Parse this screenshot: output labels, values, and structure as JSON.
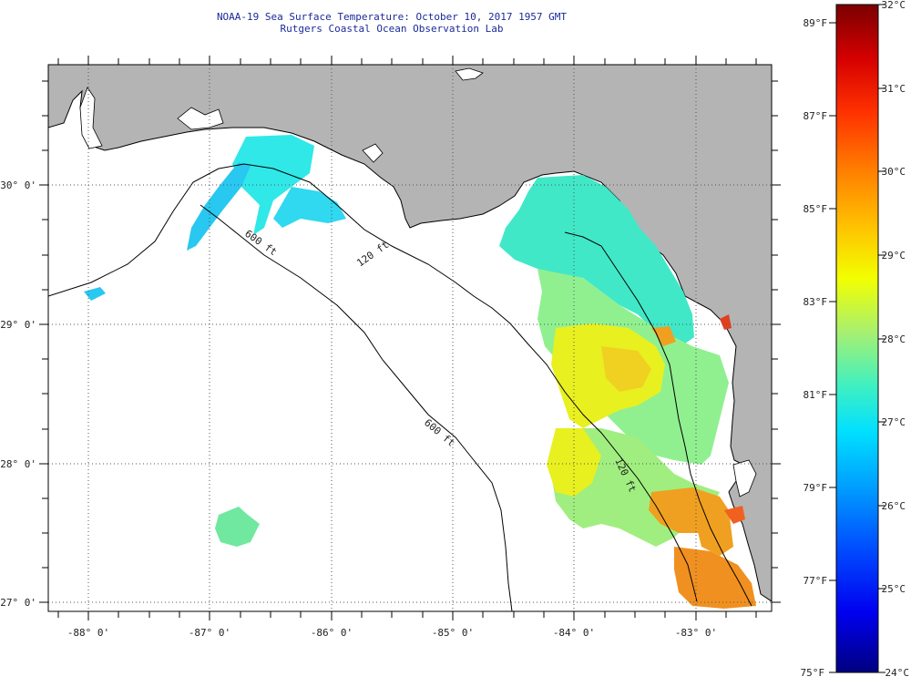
{
  "header": {
    "title": "NOAA-19 Sea Surface Temperature:  October 10, 2017 1957 GMT",
    "subtitle": "Rutgers Coastal Ocean Observation Lab"
  },
  "map": {
    "longitude_labels": [
      "-88° 0'",
      "-87° 0'",
      "-86° 0'",
      "-85° 0'",
      "-84° 0'",
      "-83° 0'"
    ],
    "latitude_labels": [
      "30° 0'",
      "29° 0'",
      "28° 0'",
      "27° 0'"
    ],
    "contour_labels": [
      "120 ft",
      "600 ft",
      "600 ft",
      "120 ft"
    ],
    "colors": {
      "land": "#b4b4b4",
      "ocean_nodata": "#ffffff",
      "coast": "#000000"
    }
  },
  "colorbar": {
    "celsius_labels": [
      "32°C",
      "31°C",
      "30°C",
      "29°C",
      "28°C",
      "27°C",
      "26°C",
      "25°C",
      "24°C"
    ],
    "fahrenheit_labels": [
      "89°F",
      "87°F",
      "85°F",
      "83°F",
      "81°F",
      "79°F",
      "77°F",
      "75°F"
    ],
    "celsius_range": [
      24,
      32
    ],
    "gradient_stops": [
      "#7a0000",
      "#d40000",
      "#ff3000",
      "#ff8000",
      "#ffc000",
      "#f2ff00",
      "#a8f070",
      "#40f0c0",
      "#00e0ff",
      "#00a0ff",
      "#0050ff",
      "#0000f0",
      "#000080"
    ]
  }
}
